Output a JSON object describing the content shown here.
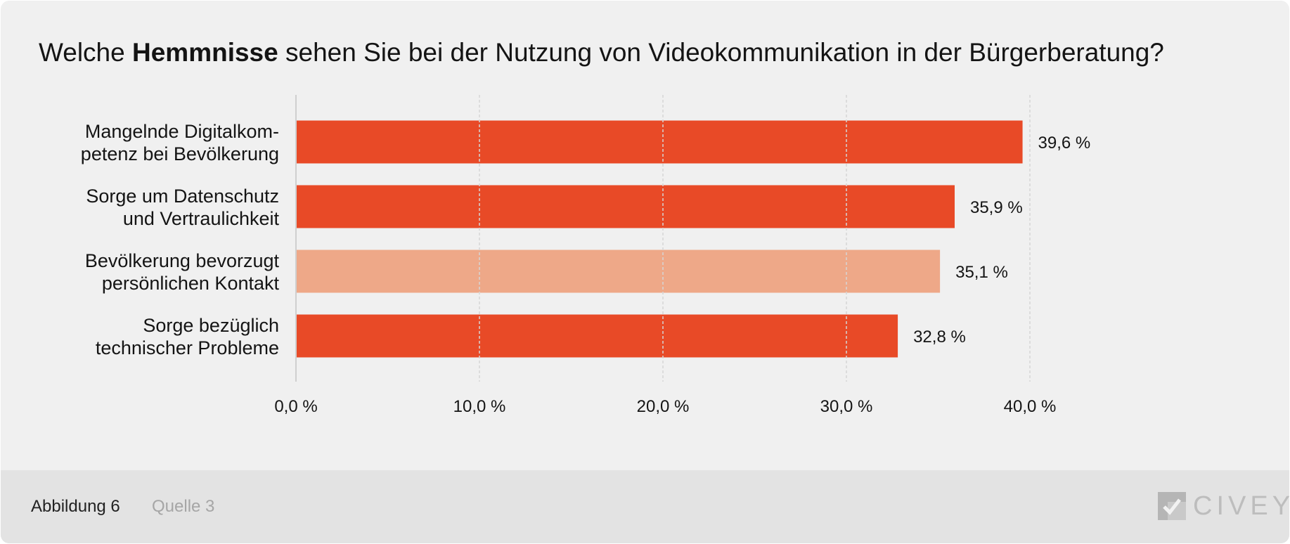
{
  "title": {
    "prefix": "Welche ",
    "emphasis": "Hemmnisse",
    "suffix": " sehen Sie bei der Nutzung von Videokommunikation in der Bürgerberatung?"
  },
  "chart_data": {
    "type": "bar",
    "orientation": "horizontal",
    "categories": [
      [
        "Mangelnde Digitalkom-",
        "petenz bei Bevölkerung"
      ],
      [
        "Sorge um Datenschutz",
        "und Vertraulichkeit"
      ],
      [
        "Bevölkerung bevorzugt",
        "persönlichen Kontakt"
      ],
      [
        "Sorge bezüglich",
        "technischer Probleme"
      ]
    ],
    "values": [
      39.6,
      35.9,
      35.1,
      32.8
    ],
    "value_labels": [
      "39,6 %",
      "35,9 %",
      "35,1 %",
      "32,8 %"
    ],
    "bar_colors": [
      "#e84a27",
      "#e84a27",
      "#eea888",
      "#e84a27"
    ],
    "xlim": [
      0,
      40
    ],
    "x_ticks": [
      0,
      10,
      20,
      30,
      40
    ],
    "x_tick_labels": [
      "0,0 %",
      "10,0 %",
      "20,0 %",
      "30,0 %",
      "40,0 %"
    ],
    "grid": "vertical dashed",
    "legend": "none"
  },
  "colors": {
    "accent": "#e84a27",
    "highlight_light": "#eea888",
    "background": "#f0f0f0",
    "footer_background": "#e3e3e3"
  },
  "footer": {
    "figure_label": "Abbildung 6",
    "source_label": "Quelle 3",
    "logo_text": "CIVEY",
    "logo_icon": "civey-logo-icon"
  }
}
